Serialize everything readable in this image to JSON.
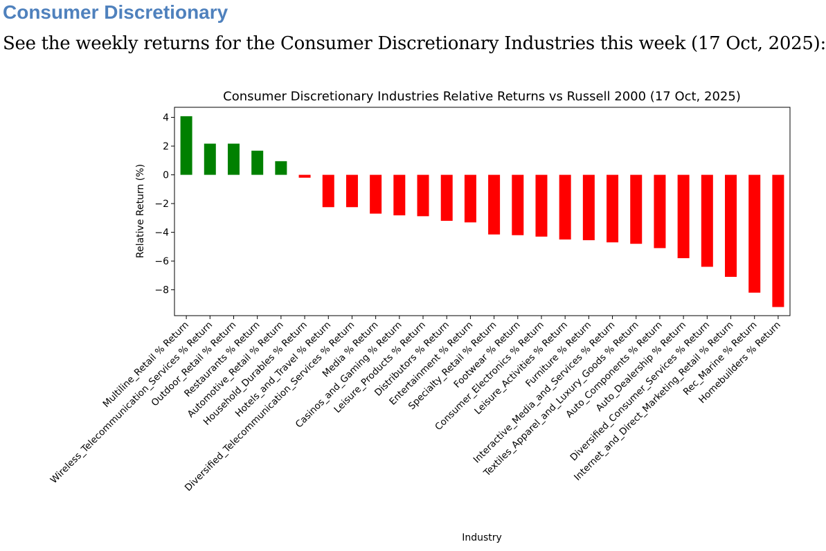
{
  "heading": "Consumer Discretionary",
  "intro": "See the weekly returns for the Consumer Discretionary Industries this week (17 Oct, 2025):",
  "chart_data": {
    "type": "bar",
    "title": "Consumer Discretionary Industries Relative Returns vs Russell 2000 (17 Oct, 2025)",
    "xlabel": "Industry",
    "ylabel": "Relative Return (%)",
    "ylim": [
      -9.8,
      4.7
    ],
    "yticks": [
      4,
      2,
      0,
      -2,
      -4,
      -6,
      -8
    ],
    "colors": {
      "positive": "#008000",
      "negative": "#ff0000"
    },
    "categories": [
      "Multiline_Retail % Return",
      "Wireless_Telecommunication_Services % Return",
      "Outdoor_Retail % Return",
      "Restaurants % Return",
      "Automotive_Retail % Return",
      "Household_Durables % Return",
      "Hotels_and_Travel % Return",
      "Diversified_Telecommunication_Services % Return",
      "Media % Return",
      "Casinos_and_Gaming % Return",
      "Leisure_Products % Return",
      "Distributors % Return",
      "Entertainment % Return",
      "Specialty_Retail % Return",
      "Footwear % Return",
      "Consumer_Electronics % Return",
      "Leisure_Activities % Return",
      "Furniture % Return",
      "Interactive_Media_and_Services % Return",
      "Textiles_Apparel_and_Luxury_Goods % Return",
      "Auto_Components % Return",
      "Auto_Dealership % Return",
      "Diversified_Consumer_Services % Return",
      "Internet_and_Direct_Marketing_Retail % Return",
      "Rec_Marine % Return",
      "Homebuilders % Return"
    ],
    "values": [
      4.08,
      2.17,
      2.17,
      1.68,
      0.95,
      -0.2,
      -2.25,
      -2.25,
      -2.7,
      -2.82,
      -2.88,
      -3.2,
      -3.31,
      -4.15,
      -4.2,
      -4.3,
      -4.5,
      -4.55,
      -4.7,
      -4.8,
      -5.1,
      -5.8,
      -6.4,
      -7.1,
      -8.2,
      -9.2
    ]
  }
}
